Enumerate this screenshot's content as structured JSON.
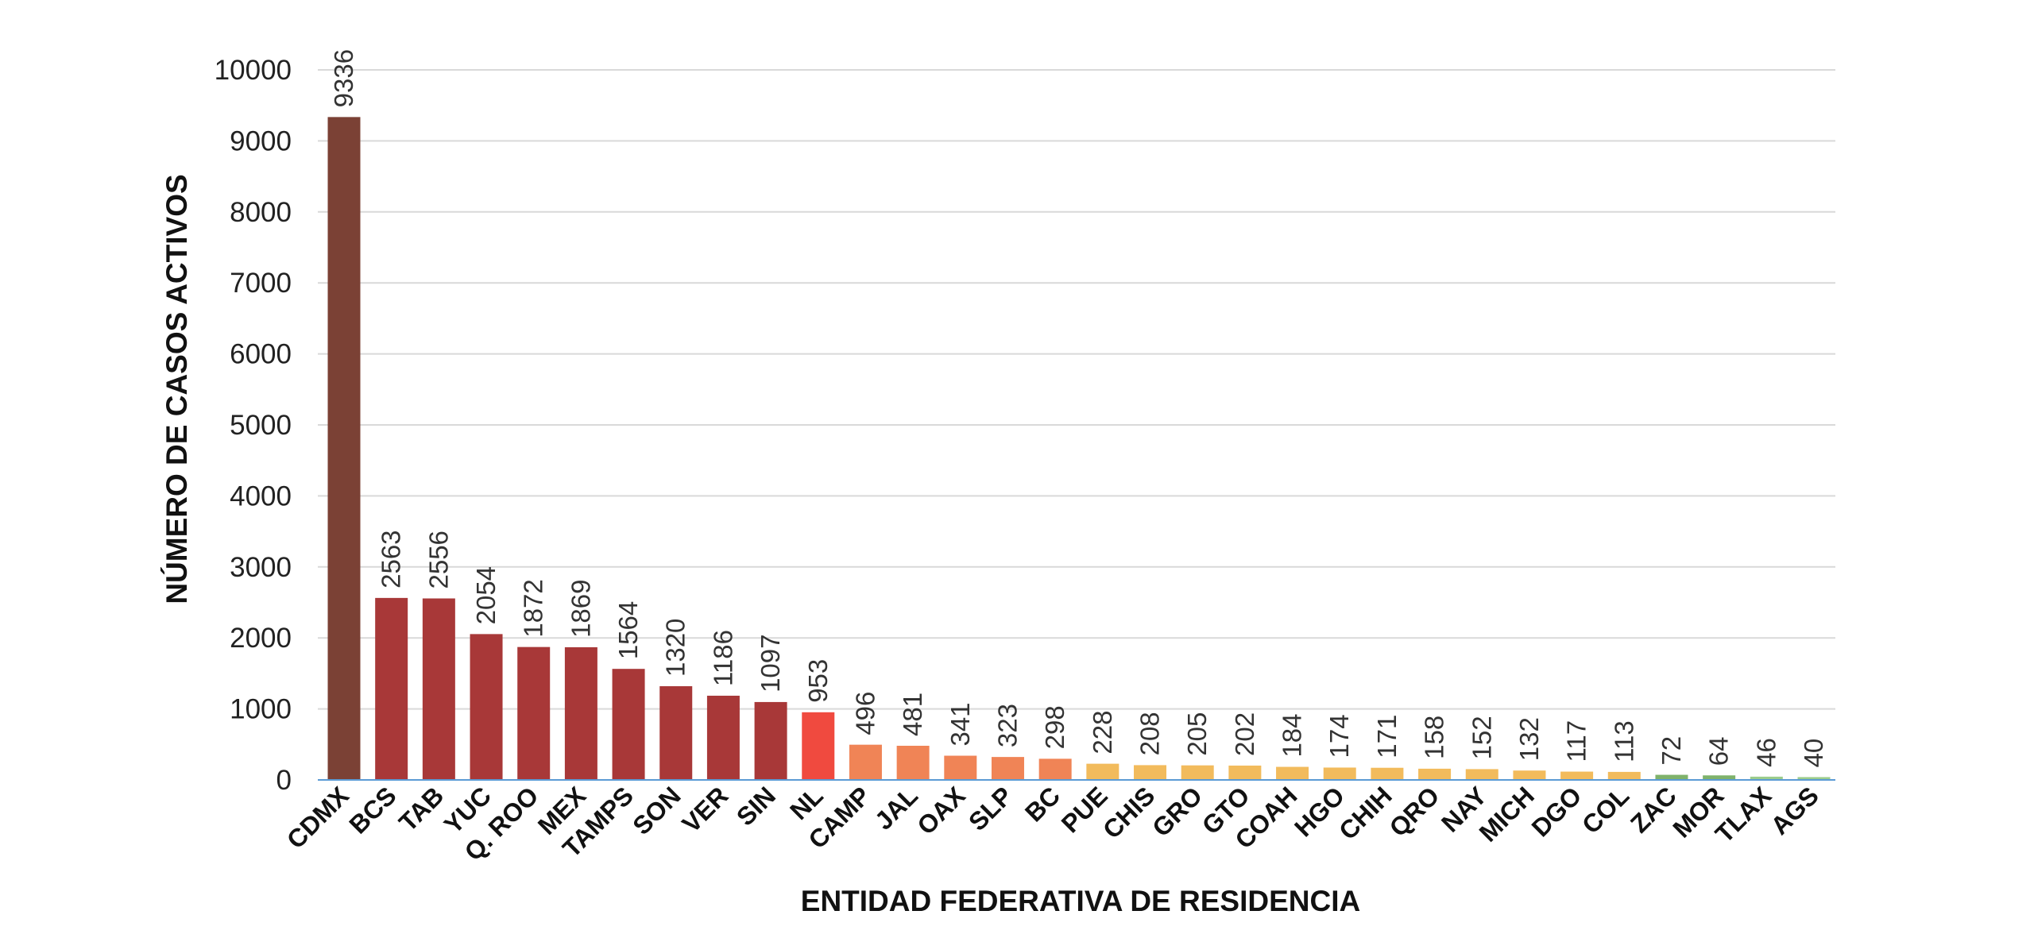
{
  "chart_data": {
    "type": "bar",
    "title": "",
    "xlabel": "ENTIDAD FEDERATIVA DE RESIDENCIA",
    "ylabel": "NÚMERO DE CASOS ACTIVOS",
    "ylim": [
      0,
      10000
    ],
    "yticks": [
      0,
      1000,
      2000,
      3000,
      4000,
      5000,
      6000,
      7000,
      8000,
      9000,
      10000
    ],
    "grid": true,
    "legend": "none",
    "categories": [
      "CDMX",
      "BCS",
      "TAB",
      "YUC",
      "Q. ROO",
      "MEX",
      "TAMPS",
      "SON",
      "VER",
      "SIN",
      "NL",
      "CAMP",
      "JAL",
      "OAX",
      "SLP",
      "BC",
      "PUE",
      "CHIS",
      "GRO",
      "GTO",
      "COAH",
      "HGO",
      "CHIH",
      "QRO",
      "NAY",
      "MICH",
      "DGO",
      "COL",
      "ZAC",
      "MOR",
      "TLAX",
      "AGS"
    ],
    "values": [
      9336,
      2563,
      2556,
      2054,
      1872,
      1869,
      1564,
      1320,
      1186,
      1097,
      953,
      496,
      481,
      341,
      323,
      298,
      228,
      208,
      205,
      202,
      184,
      174,
      171,
      158,
      152,
      132,
      117,
      113,
      72,
      64,
      46,
      40
    ],
    "colors": [
      "#7b4135",
      "#a83838",
      "#a83838",
      "#a83838",
      "#a83838",
      "#a83838",
      "#a83838",
      "#a83838",
      "#a83838",
      "#a83838",
      "#f04a3f",
      "#f08456",
      "#f08456",
      "#f08456",
      "#f08456",
      "#f08456",
      "#f2bb5c",
      "#f2bb5c",
      "#f2bb5c",
      "#f2bb5c",
      "#f2bb5c",
      "#f2bb5c",
      "#f2bb5c",
      "#f2bb5c",
      "#f2bb5c",
      "#f2bb5c",
      "#f2bb5c",
      "#f2bb5c",
      "#7fb26b",
      "#7fb26b",
      "#9bcc8c",
      "#9bcc8c"
    ],
    "grid_color": "#d9d9d9",
    "baseline_color": "#5b9bd5"
  }
}
